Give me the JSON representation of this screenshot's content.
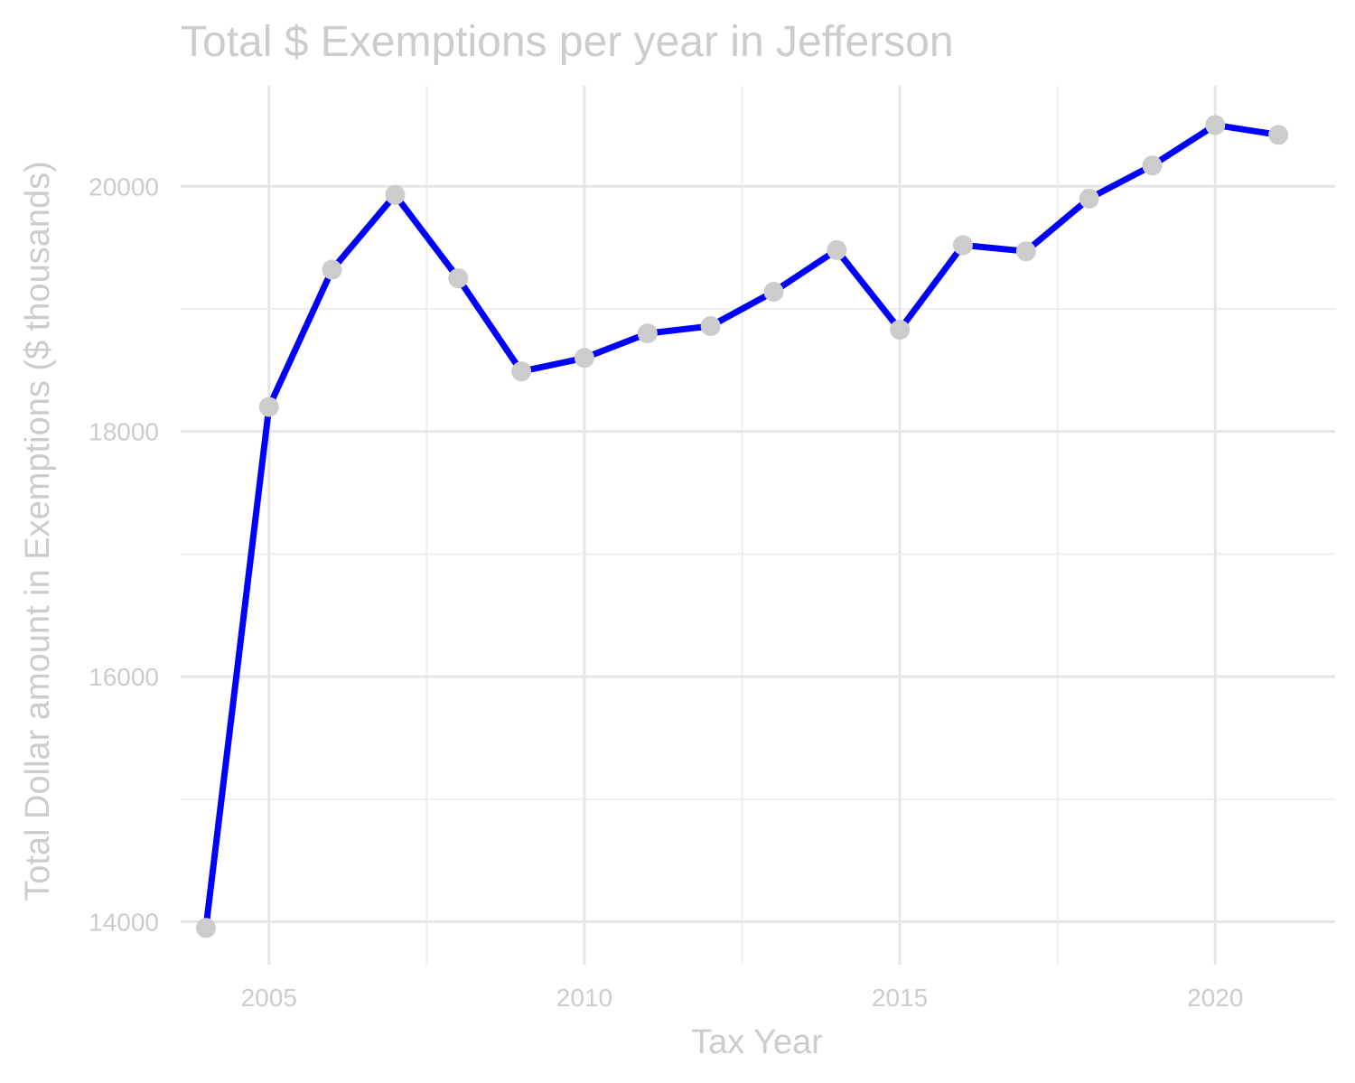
{
  "chart_data": {
    "type": "line",
    "title": "Total $ Exemptions per year in Jefferson",
    "xlabel": "Tax Year",
    "ylabel": "Total Dollar amount in Exemptions ($ thousands)",
    "x": [
      2004,
      2005,
      2006,
      2007,
      2008,
      2009,
      2010,
      2011,
      2012,
      2013,
      2014,
      2015,
      2016,
      2017,
      2018,
      2019,
      2020,
      2021
    ],
    "series": [
      {
        "values": [
          13950,
          18200,
          19320,
          19930,
          19250,
          18490,
          18600,
          18800,
          18860,
          19140,
          19480,
          18830,
          19520,
          19470,
          19900,
          20170,
          20500,
          20420
        ],
        "line_color": "#0000ff",
        "marker_color": "#cccccc"
      }
    ],
    "xlim": [
      2003.6,
      2021.9
    ],
    "ylim": [
      13650,
      20820
    ],
    "x_ticks": [
      "2005",
      "2010",
      "2015",
      "2020"
    ],
    "x_tick_values": [
      2005,
      2010,
      2015,
      2020
    ],
    "y_ticks": [
      "14000",
      "16000",
      "18000",
      "20000"
    ],
    "y_tick_values": [
      14000,
      16000,
      18000,
      20000
    ],
    "x_minor": [
      2007.5,
      2012.5,
      2017.5
    ],
    "y_minor": [
      15000,
      17000,
      19000
    ],
    "grid": true,
    "legend": "none"
  }
}
